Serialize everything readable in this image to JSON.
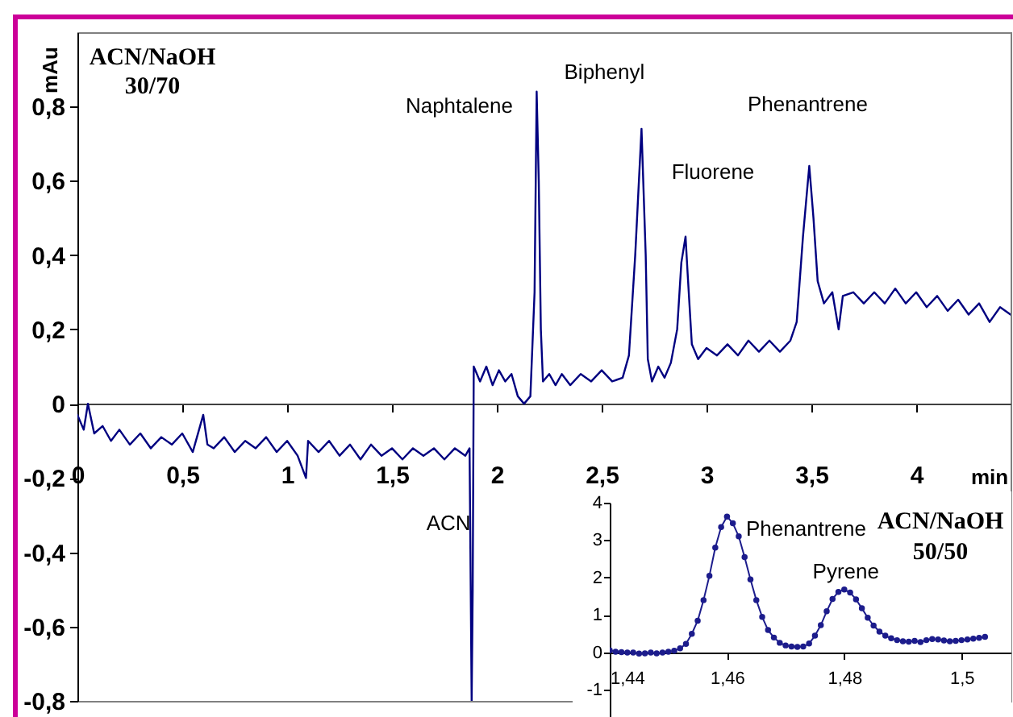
{
  "chart_data": [
    {
      "type": "line",
      "title": "ACN/NaOH 30/70",
      "xlabel": "min",
      "ylabel": "mAu",
      "x": [
        0,
        0.03,
        0.05,
        0.08,
        0.12,
        0.16,
        0.2,
        0.25,
        0.3,
        0.35,
        0.4,
        0.45,
        0.5,
        0.55,
        0.6,
        0.62,
        0.65,
        0.7,
        0.75,
        0.8,
        0.85,
        0.9,
        0.95,
        1,
        1.05,
        1.09,
        1.1,
        1.15,
        1.2,
        1.25,
        1.3,
        1.35,
        1.4,
        1.45,
        1.5,
        1.55,
        1.6,
        1.65,
        1.7,
        1.75,
        1.8,
        1.85,
        1.87,
        1.88,
        1.885,
        1.89,
        1.92,
        1.95,
        1.98,
        2.01,
        2.04,
        2.07,
        2.1,
        2.13,
        2.16,
        2.18,
        2.19,
        2.2,
        2.21,
        2.22,
        2.25,
        2.28,
        2.31,
        2.35,
        2.4,
        2.45,
        2.5,
        2.55,
        2.6,
        2.63,
        2.66,
        2.69,
        2.71,
        2.72,
        2.74,
        2.77,
        2.8,
        2.83,
        2.86,
        2.88,
        2.9,
        2.91,
        2.93,
        2.96,
        3,
        3.05,
        3.1,
        3.15,
        3.2,
        3.25,
        3.3,
        3.35,
        3.4,
        3.43,
        3.46,
        3.49,
        3.51,
        3.53,
        3.56,
        3.6,
        3.63,
        3.65,
        3.7,
        3.75,
        3.8,
        3.85,
        3.9,
        3.95,
        4,
        4.05,
        4.1,
        4.15,
        4.2,
        4.25,
        4.3,
        4.35,
        4.4,
        4.45
      ],
      "series": [
        {
          "color": "#000080",
          "values": [
            -0.03,
            -0.07,
            0,
            -0.08,
            -0.06,
            -0.1,
            -0.07,
            -0.11,
            -0.08,
            -0.12,
            -0.09,
            -0.11,
            -0.08,
            -0.13,
            -0.03,
            -0.11,
            -0.12,
            -0.09,
            -0.13,
            -0.1,
            -0.12,
            -0.09,
            -0.13,
            -0.1,
            -0.14,
            -0.2,
            -0.1,
            -0.13,
            -0.1,
            -0.14,
            -0.11,
            -0.15,
            -0.11,
            -0.14,
            -0.12,
            -0.15,
            -0.12,
            -0.14,
            -0.12,
            -0.15,
            -0.12,
            -0.14,
            -0.12,
            -0.8,
            -0.5,
            0.1,
            0.06,
            0.1,
            0.05,
            0.09,
            0.06,
            0.08,
            0.02,
            0,
            0.02,
            0.3,
            0.84,
            0.6,
            0.2,
            0.06,
            0.08,
            0.05,
            0.08,
            0.05,
            0.08,
            0.06,
            0.09,
            0.06,
            0.07,
            0.13,
            0.4,
            0.74,
            0.4,
            0.12,
            0.06,
            0.1,
            0.07,
            0.11,
            0.2,
            0.38,
            0.45,
            0.35,
            0.16,
            0.12,
            0.15,
            0.13,
            0.16,
            0.13,
            0.17,
            0.14,
            0.17,
            0.14,
            0.17,
            0.22,
            0.45,
            0.64,
            0.5,
            0.33,
            0.27,
            0.3,
            0.2,
            0.29,
            0.3,
            0.27,
            0.3,
            0.27,
            0.31,
            0.27,
            0.3,
            0.26,
            0.29,
            0.25,
            0.28,
            0.24,
            0.27,
            0.22,
            0.26,
            0.24
          ]
        }
      ],
      "xlim": [
        0,
        4.45
      ],
      "ylim": [
        -0.8,
        1
      ],
      "xticks": [
        0,
        {
          "value": 0.5,
          "label": "0,5"
        },
        1,
        {
          "value": 1.5,
          "label": "1,5"
        },
        2,
        {
          "value": 2.5,
          "label": "2,5"
        },
        3,
        {
          "value": 3.5,
          "label": "3,5"
        },
        4
      ],
      "yticks": [
        {
          "value": -0.8,
          "label": "-0,8"
        },
        {
          "value": -0.6,
          "label": "-0,6"
        },
        {
          "value": -0.4,
          "label": "-0,4"
        },
        {
          "value": -0.2,
          "label": "-0,2"
        },
        0,
        {
          "value": 0.2,
          "label": "0,2"
        },
        {
          "value": 0.4,
          "label": "0,4"
        },
        {
          "value": 0.6,
          "label": "0,6"
        },
        {
          "value": 0.8,
          "label": "0,8"
        }
      ],
      "annotations": [
        {
          "text": "Naphtalene",
          "x": 2.19,
          "y": 0.84
        },
        {
          "text": "Biphenyl",
          "x": 2.69,
          "y": 0.74
        },
        {
          "text": "Fluorene",
          "x": 2.9,
          "y": 0.45
        },
        {
          "text": "Phenantrene",
          "x": 3.49,
          "y": 0.64
        },
        {
          "text": "ACN",
          "x": 1.885,
          "y": -0.5
        }
      ]
    },
    {
      "type": "line",
      "title": "ACN/NaOH 50/50",
      "marker": "circle",
      "x": [
        1.44,
        1.441,
        1.442,
        1.443,
        1.444,
        1.445,
        1.446,
        1.447,
        1.448,
        1.449,
        1.45,
        1.451,
        1.452,
        1.453,
        1.454,
        1.455,
        1.456,
        1.457,
        1.458,
        1.459,
        1.46,
        1.461,
        1.462,
        1.463,
        1.464,
        1.465,
        1.466,
        1.467,
        1.468,
        1.469,
        1.47,
        1.471,
        1.472,
        1.473,
        1.474,
        1.475,
        1.476,
        1.477,
        1.478,
        1.479,
        1.48,
        1.481,
        1.482,
        1.483,
        1.484,
        1.485,
        1.486,
        1.487,
        1.488,
        1.489,
        1.49,
        1.491,
        1.492,
        1.493,
        1.494,
        1.495,
        1.496,
        1.497,
        1.498,
        1.499,
        1.5,
        1.501,
        1.502,
        1.503,
        1.504
      ],
      "series": [
        {
          "color": "#1c1c8c",
          "values": [
            0.06,
            0.02,
            0.01,
            0,
            0,
            -0.03,
            -0.02,
            0,
            -0.02,
            0,
            0.02,
            0.05,
            0.11,
            0.23,
            0.5,
            0.85,
            1.4,
            2.05,
            2.8,
            3.35,
            3.63,
            3.45,
            3.1,
            2.55,
            1.95,
            1.4,
            0.95,
            0.6,
            0.4,
            0.26,
            0.19,
            0.16,
            0.15,
            0.16,
            0.24,
            0.45,
            0.73,
            1.1,
            1.43,
            1.62,
            1.68,
            1.6,
            1.42,
            1.18,
            0.93,
            0.72,
            0.56,
            0.45,
            0.38,
            0.33,
            0.3,
            0.29,
            0.31,
            0.28,
            0.33,
            0.36,
            0.35,
            0.32,
            0.3,
            0.31,
            0.33,
            0.35,
            0.37,
            0.39,
            0.42
          ]
        }
      ],
      "xlim": [
        1.44,
        1.5085
      ],
      "ylim": [
        -1.7,
        4
      ],
      "xticks": [
        {
          "value": 1.44,
          "label": "1,44"
        },
        {
          "value": 1.46,
          "label": "1,46"
        },
        {
          "value": 1.48,
          "label": "1,48"
        },
        {
          "value": 1.5,
          "label": "1,5"
        }
      ],
      "yticks": [
        -1,
        0,
        1,
        2,
        3,
        4
      ],
      "annotations": [
        {
          "text": "Phenantrene",
          "x": 1.46,
          "y": 3.63
        },
        {
          "text": "Pyrene",
          "x": 1.48,
          "y": 1.68
        }
      ]
    }
  ]
}
